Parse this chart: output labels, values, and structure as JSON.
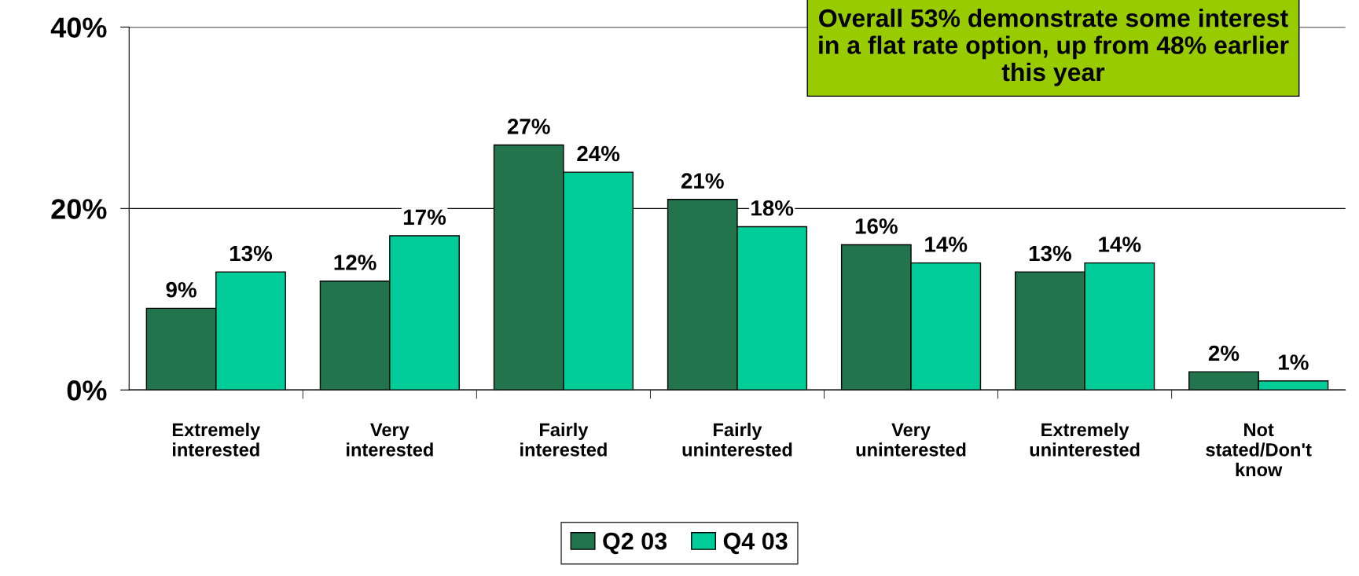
{
  "chart_data": {
    "type": "bar",
    "categories": [
      "Extremely\ninterested",
      "Very\ninterested",
      "Fairly\ninterested",
      "Fairly\nuninterested",
      "Very\nuninterested",
      "Extremely\nuninterested",
      "Not\nstated/Don't\nknow"
    ],
    "series": [
      {
        "name": "Q2 03",
        "color": "#22744c",
        "values": [
          9,
          12,
          27,
          21,
          16,
          13,
          2
        ],
        "value_labels": [
          "9%",
          "12%",
          "27%",
          "21%",
          "16%",
          "13%",
          "2%"
        ]
      },
      {
        "name": "Q4 03",
        "color": "#00cc99",
        "values": [
          13,
          17,
          24,
          18,
          14,
          14,
          1
        ],
        "value_labels": [
          "13%",
          "17%",
          "24%",
          "18%",
          "14%",
          "14%",
          "1%"
        ]
      }
    ],
    "ylim": [
      0,
      40
    ],
    "yticks": [
      {
        "value": 0,
        "label": "0%"
      },
      {
        "value": 20,
        "label": "20%"
      },
      {
        "value": 40,
        "label": "40%"
      }
    ],
    "grid": "y",
    "legend": "bottom",
    "annotations": [
      "Overall 53% demonstrate some interest in a flat rate option, up from 48% earlier this year"
    ]
  }
}
